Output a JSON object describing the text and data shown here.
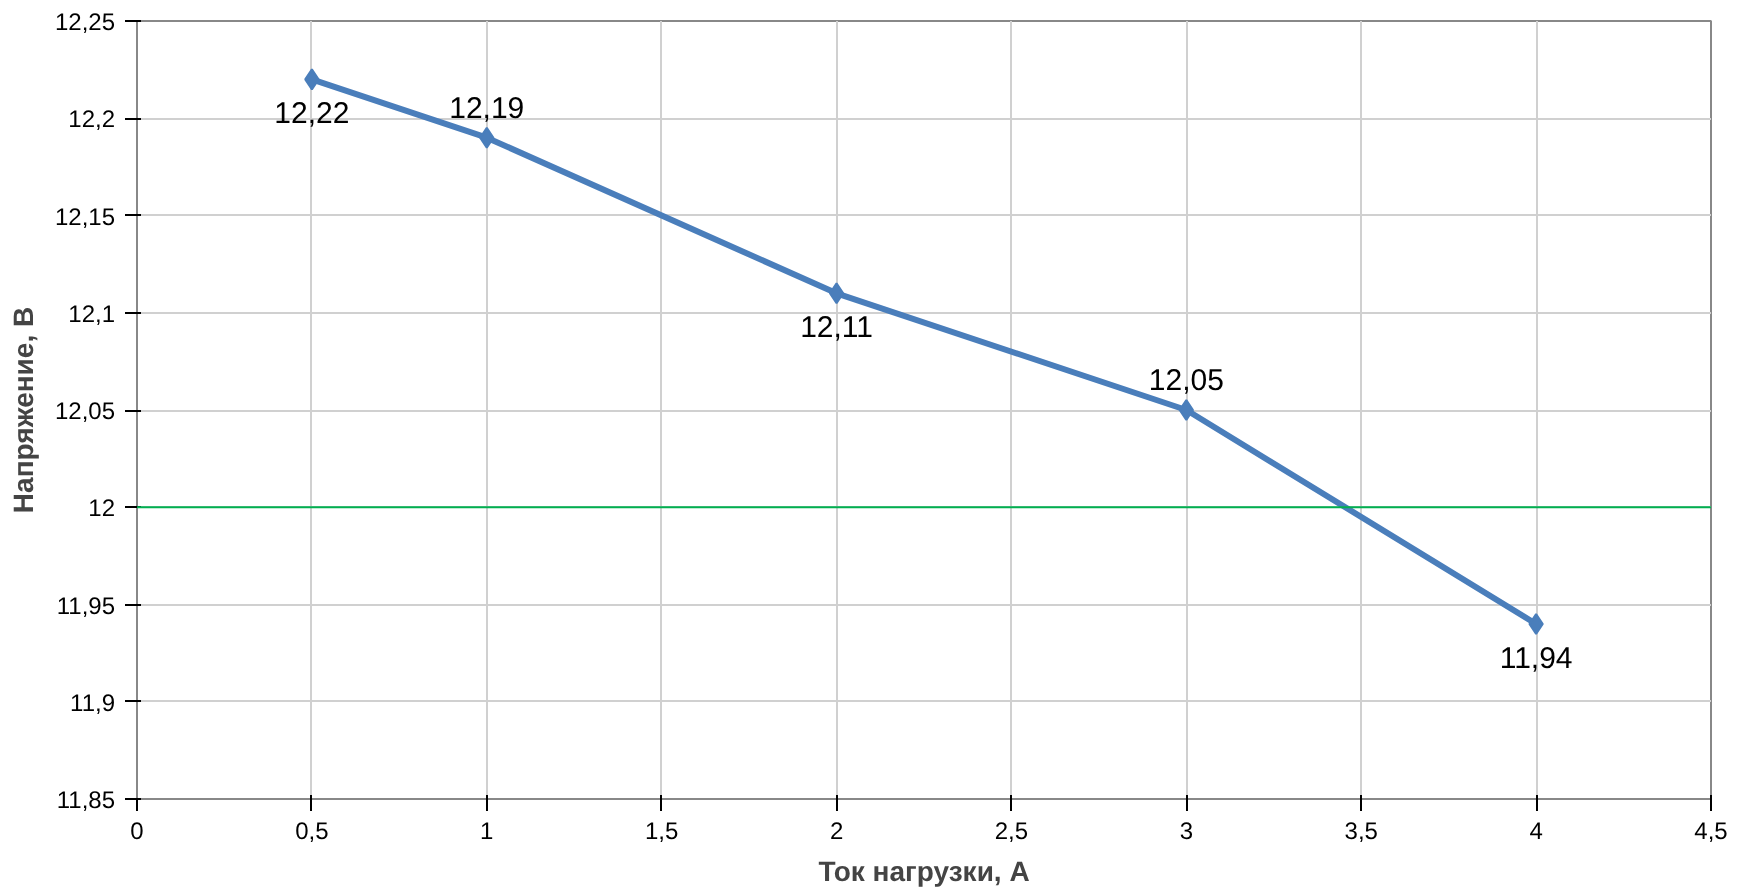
{
  "chart_data": {
    "type": "line",
    "xlabel": "Ток нагрузки, А",
    "ylabel": "Напряжение, В",
    "x": [
      0.5,
      1,
      2,
      3,
      4
    ],
    "series": [
      {
        "color": "#4a7ebb",
        "values": [
          12.22,
          12.19,
          12.11,
          12.05,
          11.94
        ],
        "value_labels": [
          "12,22",
          "12,19",
          "12,11",
          "12,05",
          "11,94"
        ]
      }
    ],
    "xlim": [
      0,
      4.5
    ],
    "xticks": [
      0,
      {
        "value": 0.5,
        "label": "0,5"
      },
      1,
      {
        "value": 1.5,
        "label": "1,5"
      },
      2,
      {
        "value": 2.5,
        "label": "2,5"
      },
      3,
      {
        "value": 3.5,
        "label": "3,5"
      },
      4,
      {
        "value": 4.5,
        "label": "4,5"
      }
    ],
    "ylim": [
      11.85,
      12.25
    ],
    "yticks": [
      {
        "value": 11.85,
        "label": "11,85"
      },
      {
        "value": 11.9,
        "label": "11,9"
      },
      {
        "value": 11.95,
        "label": "11,95"
      },
      12,
      {
        "value": 12.05,
        "label": "12,05"
      },
      {
        "value": 12.1,
        "label": "12,1"
      },
      {
        "value": 12.15,
        "label": "12,15"
      },
      {
        "value": 12.2,
        "label": "12,2"
      },
      {
        "value": 12.25,
        "label": "12,25"
      }
    ],
    "ref_lines": [
      {
        "axis": "y",
        "value": 12,
        "color": "#00b050"
      }
    ],
    "grid": true,
    "marker": "diamond",
    "line_style": "solid"
  }
}
